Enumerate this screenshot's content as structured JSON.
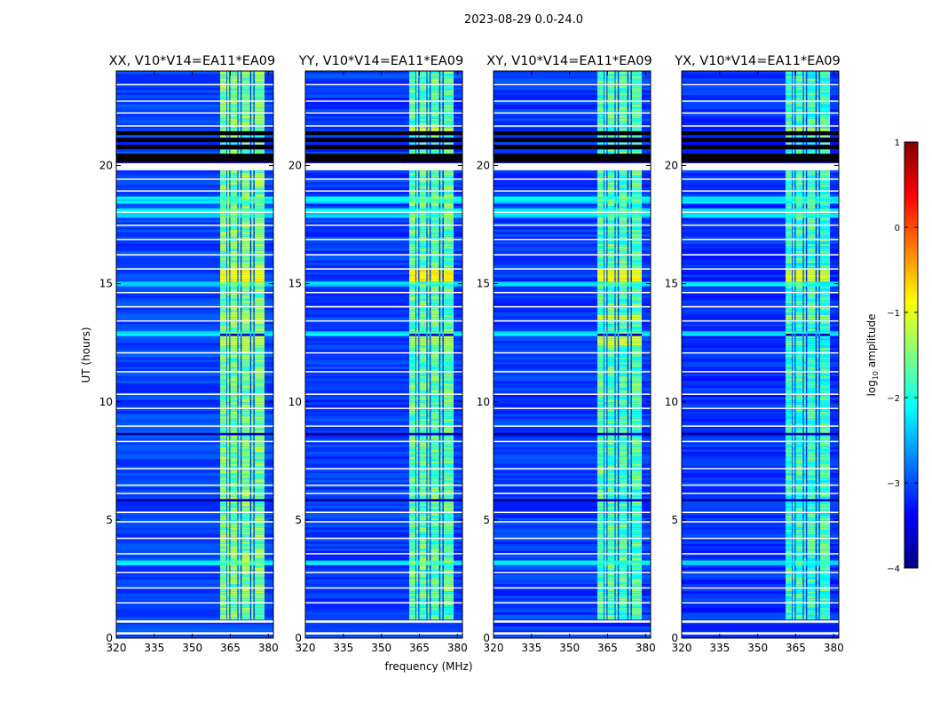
{
  "figure": {
    "suptitle": "2023-08-29 0.0-24.0",
    "xlabel": "frequency (MHz)",
    "ylabel": "UT (hours)"
  },
  "colorbar": {
    "label": "log10 amplitude",
    "label_main": "log",
    "label_sub": "10",
    "label_rest": " amplitude",
    "range": [
      -4,
      1
    ],
    "ticks": [
      {
        "value": 1,
        "label": "1"
      },
      {
        "value": 0,
        "label": "0"
      },
      {
        "value": -1,
        "label": "−1"
      },
      {
        "value": -2,
        "label": "−2"
      },
      {
        "value": -3,
        "label": "−3"
      },
      {
        "value": -4,
        "label": "−4"
      }
    ],
    "colormap": [
      "#00007f",
      "#0000ff",
      "#007fff",
      "#00ffff",
      "#7fff7f",
      "#ffff00",
      "#ff7f00",
      "#ff0000",
      "#7f0000"
    ]
  },
  "chart_data": {
    "type": "heatmap",
    "xlim": [
      320,
      382
    ],
    "ylim": [
      0,
      24
    ],
    "xticks": [
      {
        "value": 320,
        "label": "320"
      },
      {
        "value": 335,
        "label": "335"
      },
      {
        "value": 350,
        "label": "350"
      },
      {
        "value": 365,
        "label": "365"
      },
      {
        "value": 380,
        "label": "380"
      }
    ],
    "yticks": [
      {
        "value": 0,
        "label": "0"
      },
      {
        "value": 5,
        "label": "5"
      },
      {
        "value": 10,
        "label": "10"
      },
      {
        "value": 15,
        "label": "15"
      },
      {
        "value": 20,
        "label": "20"
      }
    ],
    "rfi_band_mhz": [
      361,
      378.5
    ],
    "rfi_channels_mhz": [
      [
        361.0,
        363.5
      ],
      [
        363.8,
        364.6
      ],
      [
        365.0,
        367.8
      ],
      [
        368.2,
        369.0
      ],
      [
        369.5,
        372.8
      ],
      [
        373.3,
        374.1
      ],
      [
        374.6,
        378.5
      ]
    ],
    "flagged_rows_ut": [
      [
        0.15,
        0.25
      ],
      [
        0.65,
        0.75
      ],
      [
        1.48,
        1.52
      ],
      [
        2.1,
        2.15
      ],
      [
        2.75,
        2.8
      ],
      [
        3.55,
        3.6
      ],
      [
        4.2,
        4.25
      ],
      [
        4.9,
        4.95
      ],
      [
        5.3,
        5.35
      ],
      [
        6.1,
        6.15
      ],
      [
        6.45,
        6.5
      ],
      [
        7.15,
        7.2
      ],
      [
        8.3,
        8.35
      ],
      [
        8.95,
        9.0
      ],
      [
        9.7,
        9.75
      ],
      [
        10.3,
        10.35
      ],
      [
        11.25,
        11.3
      ],
      [
        12.05,
        12.1
      ],
      [
        13.4,
        13.45
      ],
      [
        14.0,
        14.05
      ],
      [
        14.6,
        14.65
      ],
      [
        15.6,
        15.65
      ],
      [
        16.2,
        16.25
      ],
      [
        16.85,
        16.9
      ],
      [
        17.45,
        17.5
      ],
      [
        18.0,
        18.05
      ],
      [
        18.9,
        18.95
      ],
      [
        19.4,
        19.45
      ],
      [
        19.8,
        20.1
      ],
      [
        21.65,
        21.7
      ],
      [
        22.2,
        22.25
      ],
      [
        22.7,
        22.75
      ],
      [
        23.4,
        23.45
      ]
    ],
    "dark_rows_ut": [
      [
        2.95,
        3.0
      ],
      [
        5.85,
        5.9
      ],
      [
        7.65,
        7.7
      ],
      [
        8.6,
        8.65
      ],
      [
        12.8,
        12.85
      ],
      [
        13.1,
        13.15
      ],
      [
        20.15,
        20.5
      ],
      [
        20.7,
        20.85
      ],
      [
        21.0,
        21.15
      ],
      [
        21.3,
        21.45
      ]
    ],
    "bright_rows_ut": [
      [
        3.1,
        3.3
      ],
      [
        12.85,
        12.95
      ],
      [
        14.95,
        15.1
      ],
      [
        17.85,
        18.2
      ],
      [
        18.4,
        18.65
      ]
    ],
    "panels": [
      {
        "title": "XX, V10*V14=EA11*EA09",
        "background_level": -3.05,
        "rfi_level": -1.55,
        "rfi_hot": [
          {
            "ut": [
              15.1,
              15.6
            ],
            "level": -0.9
          },
          {
            "ut": [
              12.4,
              12.8
            ],
            "level": -1.2
          },
          {
            "ut": [
              13.4,
              13.8
            ],
            "level": -1.25
          }
        ]
      },
      {
        "title": "YY, V10*V14=EA11*EA09",
        "background_level": -3.1,
        "rfi_level": -1.7,
        "rfi_hot": [
          {
            "ut": [
              15.1,
              15.6
            ],
            "level": -0.8
          },
          {
            "ut": [
              12.4,
              12.8
            ],
            "level": -1.3
          },
          {
            "ut": [
              21.45,
              21.6
            ],
            "level": -1.0
          }
        ]
      },
      {
        "title": "XY, V10*V14=EA11*EA09",
        "background_level": -3.1,
        "rfi_level": -1.75,
        "rfi_hot": [
          {
            "ut": [
              15.1,
              15.6
            ],
            "level": -0.95
          },
          {
            "ut": [
              12.4,
              12.8
            ],
            "level": -1.15
          },
          {
            "ut": [
              13.5,
              13.7
            ],
            "level": -1.1
          }
        ]
      },
      {
        "title": "YX, V10*V14=EA11*EA09",
        "background_level": -3.15,
        "rfi_level": -1.85,
        "rfi_hot": [
          {
            "ut": [
              15.1,
              15.6
            ],
            "level": -1.1
          },
          {
            "ut": [
              21.45,
              21.6
            ],
            "level": -1.2
          },
          {
            "ut": [
              13.5,
              13.7
            ],
            "level": -1.4
          }
        ]
      }
    ]
  }
}
